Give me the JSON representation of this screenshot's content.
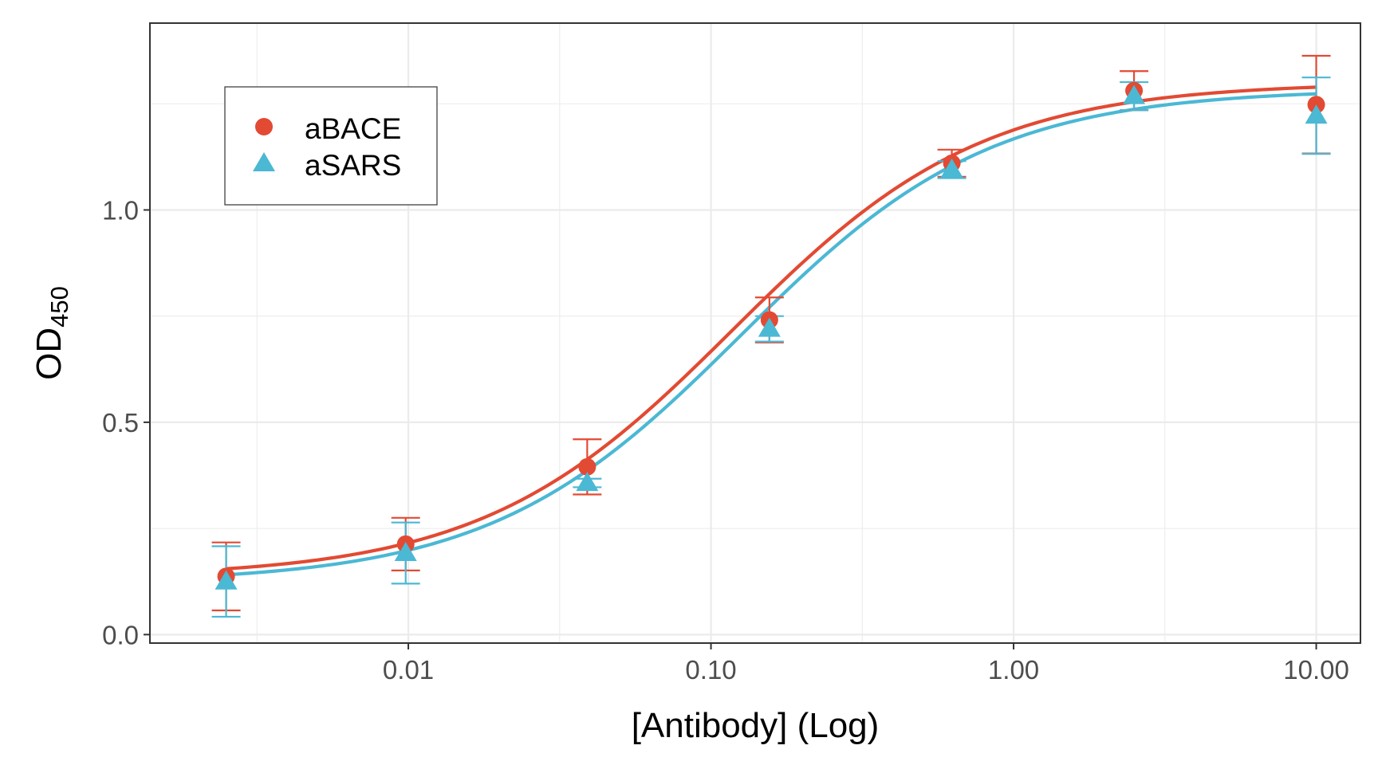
{
  "chart_data": {
    "type": "scatter",
    "xlabel": "[Antibody] (Log)",
    "ylabel": {
      "main": "OD",
      "subscript": "450"
    },
    "x_scale": "log10",
    "xlim": [
      0.0014,
      14
    ],
    "ylim": [
      -0.02,
      1.44
    ],
    "x_ticks": [
      0.01,
      0.1,
      1,
      10
    ],
    "x_tick_labels": [
      "0.01",
      "0.10",
      "1.00",
      "10.00"
    ],
    "y_ticks": [
      0.0,
      0.5,
      1.0
    ],
    "y_tick_labels": [
      "0.0",
      "0.5",
      "1.0"
    ],
    "grid": true,
    "legend_position": "top-left",
    "series": [
      {
        "name": "aBACE",
        "marker": "circle",
        "color": "#E24A33",
        "x": [
          0.0025,
          0.0098,
          0.039,
          0.156,
          0.625,
          2.5,
          10
        ],
        "y": [
          0.137,
          0.213,
          0.395,
          0.741,
          1.11,
          1.281,
          1.248
        ],
        "err": [
          0.08,
          0.062,
          0.065,
          0.053,
          0.032,
          0.046,
          0.115
        ],
        "fit": {
          "bottom": 0.135,
          "top": 1.3,
          "ec50": 0.118,
          "hill": 1.05
        }
      },
      {
        "name": "aSARS",
        "marker": "triangle",
        "color": "#4BB8D4",
        "x": [
          0.0025,
          0.0098,
          0.039,
          0.156,
          0.625,
          2.5,
          10
        ],
        "y": [
          0.125,
          0.192,
          0.357,
          0.72,
          1.095,
          1.268,
          1.222
        ],
        "err": [
          0.083,
          0.072,
          0.01,
          0.03,
          0.02,
          0.033,
          0.09
        ],
        "fit": {
          "bottom": 0.122,
          "top": 1.285,
          "ec50": 0.125,
          "hill": 1.05
        }
      }
    ]
  }
}
